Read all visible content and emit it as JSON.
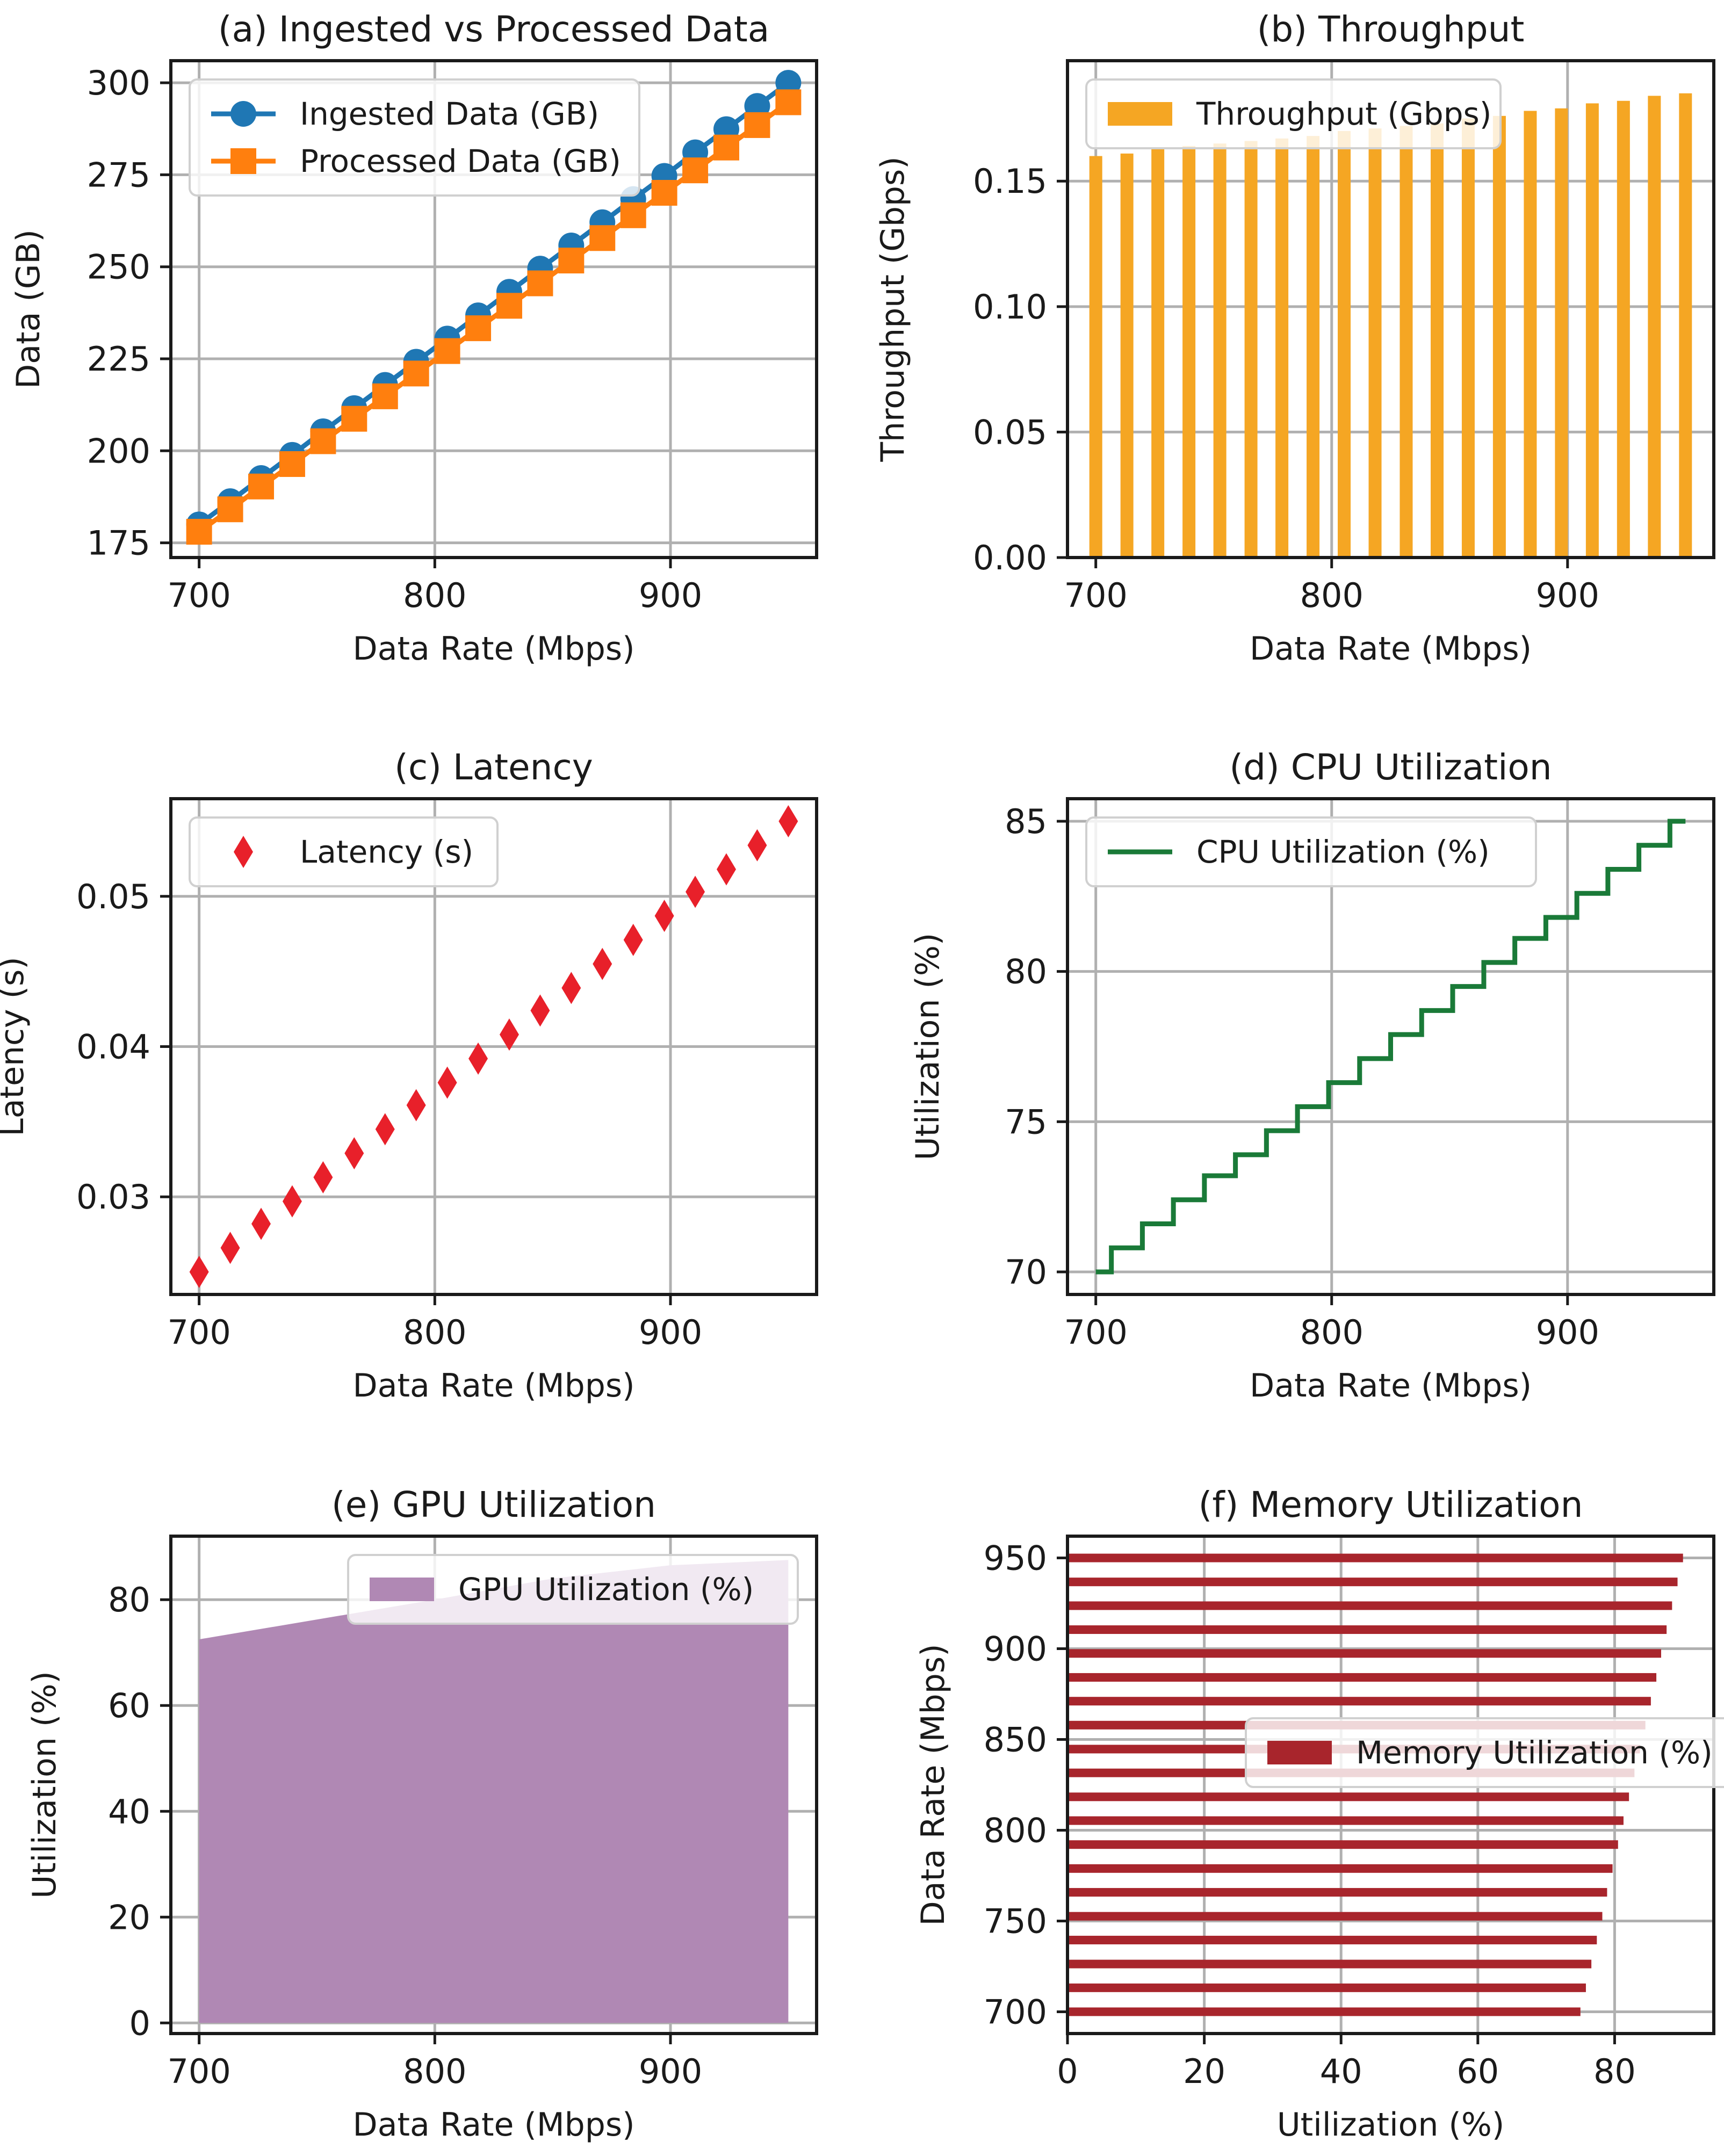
{
  "chart_data": [
    {
      "id": "a",
      "type": "line",
      "title": "(a) Ingested vs Processed Data",
      "xlabel": "Data Rate (Mbps)",
      "ylabel": "Data (GB)",
      "xlim": [
        688,
        962
      ],
      "ylim": [
        171,
        306
      ],
      "xticks": [
        700,
        800,
        900
      ],
      "yticks": [
        175,
        200,
        225,
        250,
        275,
        300
      ],
      "legend": "top-left",
      "x": [
        700,
        713.2,
        726.3,
        739.5,
        752.6,
        765.8,
        778.9,
        792.1,
        805.3,
        818.4,
        831.6,
        844.7,
        857.9,
        871.1,
        884.2,
        897.4,
        910.5,
        923.7,
        936.8,
        950
      ],
      "series": [
        {
          "name": "Ingested Data (GB)",
          "color": "#1f77b4",
          "marker": "circle",
          "values": [
            180,
            186.3,
            192.6,
            198.9,
            205.3,
            211.6,
            217.9,
            224.2,
            230.5,
            236.8,
            243.2,
            249.5,
            255.8,
            262.1,
            268.4,
            274.7,
            281.1,
            287.4,
            293.7,
            300
          ]
        },
        {
          "name": "Processed Data (GB)",
          "color": "#ff7f0e",
          "marker": "square",
          "values": [
            178,
            184.1,
            190.3,
            196.4,
            202.6,
            208.7,
            214.8,
            221,
            227.1,
            233.3,
            239.4,
            245.5,
            251.7,
            257.8,
            264,
            270.1,
            276.2,
            282.4,
            288.5,
            294.7
          ]
        }
      ]
    },
    {
      "id": "b",
      "type": "bar",
      "title": "(b) Throughput",
      "xlabel": "Data Rate (Mbps)",
      "ylabel": "Throughput (Gbps)",
      "xlim": [
        688,
        962
      ],
      "ylim": [
        0,
        0.198
      ],
      "xticks": [
        700,
        800,
        900
      ],
      "yticks": [
        0.0,
        0.05,
        0.1,
        0.15
      ],
      "ytick_labels": [
        "0.00",
        "0.05",
        "0.10",
        "0.15"
      ],
      "legend": "top-left",
      "x": [
        700,
        713.2,
        726.3,
        739.5,
        752.6,
        765.8,
        778.9,
        792.1,
        805.3,
        818.4,
        831.6,
        844.7,
        857.9,
        871.1,
        884.2,
        897.4,
        910.5,
        923.7,
        936.8,
        950
      ],
      "series": [
        {
          "name": "Throughput (Gbps)",
          "color": "#f5a623",
          "values": [
            0.16,
            0.161,
            0.163,
            0.164,
            0.165,
            0.166,
            0.167,
            0.168,
            0.17,
            0.171,
            0.172,
            0.173,
            0.175,
            0.176,
            0.178,
            0.179,
            0.181,
            0.182,
            0.184,
            0.185
          ]
        }
      ]
    },
    {
      "id": "c",
      "type": "scatter",
      "title": "(c) Latency",
      "xlabel": "Data Rate (Mbps)",
      "ylabel": "Latency (s)",
      "xlim": [
        688,
        962
      ],
      "ylim": [
        0.0235,
        0.0565
      ],
      "xticks": [
        700,
        800,
        900
      ],
      "yticks": [
        0.03,
        0.04,
        0.05
      ],
      "ytick_labels": [
        "0.03",
        "0.04",
        "0.05"
      ],
      "legend": "top-left",
      "x": [
        700,
        713.2,
        726.3,
        739.5,
        752.6,
        765.8,
        778.9,
        792.1,
        805.3,
        818.4,
        831.6,
        844.7,
        857.9,
        871.1,
        884.2,
        897.4,
        910.5,
        923.7,
        936.8,
        950
      ],
      "series": [
        {
          "name": "Latency (s)",
          "color": "#e8202a",
          "marker": "diamond",
          "values": [
            0.025,
            0.0266,
            0.0282,
            0.0297,
            0.0313,
            0.0329,
            0.0345,
            0.0361,
            0.0376,
            0.0392,
            0.0408,
            0.0424,
            0.0439,
            0.0455,
            0.0471,
            0.0487,
            0.0503,
            0.0518,
            0.0534,
            0.055
          ]
        }
      ]
    },
    {
      "id": "d",
      "type": "line",
      "title": "(d) CPU Utilization",
      "xlabel": "Data Rate (Mbps)",
      "ylabel": "Utilization (%)",
      "xlim": [
        688,
        962
      ],
      "ylim": [
        69.25,
        85.75
      ],
      "xticks": [
        700,
        800,
        900
      ],
      "yticks": [
        70,
        75,
        80,
        85
      ],
      "legend": "top-left",
      "step": "mid",
      "x": [
        700,
        713.2,
        726.3,
        739.5,
        752.6,
        765.8,
        778.9,
        792.1,
        805.3,
        818.4,
        831.6,
        844.7,
        857.9,
        871.1,
        884.2,
        897.4,
        910.5,
        923.7,
        936.8,
        950
      ],
      "series": [
        {
          "name": "CPU Utilization (%)",
          "color": "#1a7a38",
          "values": [
            70.0,
            70.8,
            71.6,
            72.4,
            73.2,
            73.9,
            74.7,
            75.5,
            76.3,
            77.1,
            77.9,
            78.7,
            79.5,
            80.3,
            81.1,
            81.8,
            82.6,
            83.4,
            84.2,
            85.0
          ]
        }
      ]
    },
    {
      "id": "e",
      "type": "area",
      "title": "(e) GPU Utilization",
      "xlabel": "Data Rate (Mbps)",
      "ylabel": "Utilization (%)",
      "xlim": [
        688,
        962
      ],
      "ylim": [
        -2,
        92
      ],
      "xticks": [
        700,
        800,
        900
      ],
      "yticks": [
        0,
        20,
        40,
        60,
        80
      ],
      "legend": "top-right",
      "x": [
        700,
        800,
        850,
        900,
        950
      ],
      "series": [
        {
          "name": "GPU Utilization (%)",
          "color": "#b088b4",
          "values": [
            72.5,
            80,
            84,
            86.5,
            87.5
          ]
        }
      ]
    },
    {
      "id": "f",
      "type": "bar",
      "orientation": "horizontal",
      "title": "(f) Memory Utilization",
      "xlabel": "Utilization (%)",
      "ylabel": "Data Rate (Mbps)",
      "xlim": [
        0,
        94.5
      ],
      "ylim": [
        688,
        962
      ],
      "xticks": [
        0,
        20,
        40,
        60,
        80
      ],
      "yticks": [
        700,
        750,
        800,
        850,
        900,
        950
      ],
      "legend": "center-right",
      "categories": [
        700,
        713.2,
        726.3,
        739.5,
        752.6,
        765.8,
        778.9,
        792.1,
        805.3,
        818.4,
        831.6,
        844.7,
        857.9,
        871.1,
        884.2,
        897.4,
        910.5,
        923.7,
        936.8,
        950
      ],
      "series": [
        {
          "name": "Memory Utilization (%)",
          "color": "#a8252c",
          "values": [
            75.0,
            75.8,
            76.6,
            77.4,
            78.2,
            78.9,
            79.7,
            80.5,
            81.3,
            82.1,
            82.9,
            83.7,
            84.5,
            85.3,
            86.1,
            86.8,
            87.6,
            88.4,
            89.2,
            90.0
          ]
        }
      ]
    }
  ]
}
